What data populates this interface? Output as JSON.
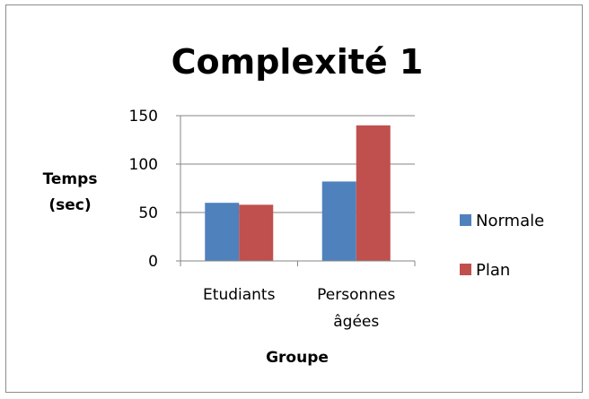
{
  "chart_data": {
    "type": "bar",
    "title": "Complexité 1",
    "xlabel": "Groupe",
    "ylabel_lines": [
      "Temps",
      "(sec)"
    ],
    "categories": [
      [
        "Etudiants"
      ],
      [
        "Personnes",
        "âgées"
      ]
    ],
    "series": [
      {
        "name": "Normale",
        "values": [
          60,
          82
        ],
        "color": "#4f81bd"
      },
      {
        "name": "Plan",
        "values": [
          58,
          140
        ],
        "color": "#c0504d"
      }
    ],
    "ylim": [
      0,
      150
    ],
    "yticks": [
      0,
      50,
      100,
      150
    ],
    "grid": true,
    "legend_position": "right"
  }
}
